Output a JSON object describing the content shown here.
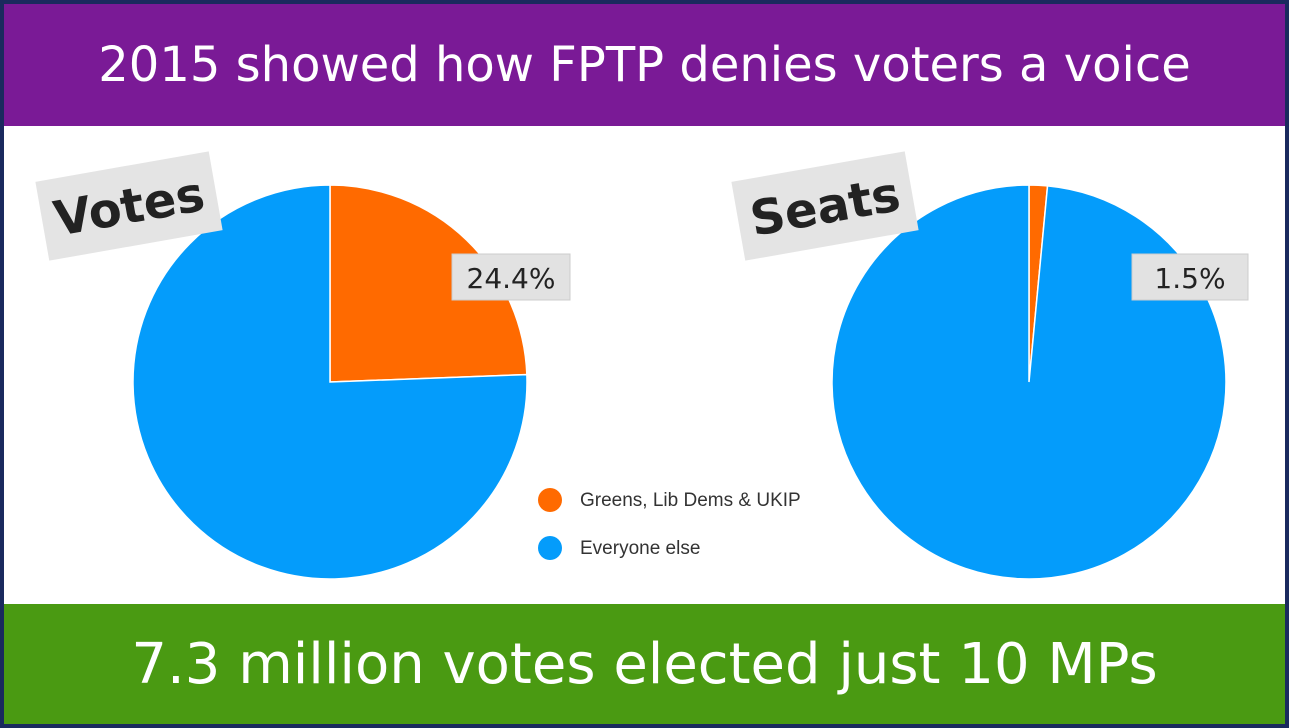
{
  "header": {
    "title": "2015 showed how FPTP denies voters a voice"
  },
  "footer": {
    "caption": "7.3 million votes elected just 10 MPs"
  },
  "colors": {
    "orange": "#ff6a00",
    "blue": "#049cfb",
    "top_banner": "#7a1a96",
    "bottom_banner": "#4a9a12"
  },
  "chart_data": [
    {
      "type": "pie",
      "title": "Votes",
      "slices": [
        {
          "label": "Greens, Lib Dems & UKIP",
          "value": 24.4,
          "data_label": "24.4%",
          "color": "#ff6a00"
        },
        {
          "label": "Everyone else",
          "value": 75.6,
          "color": "#049cfb"
        }
      ]
    },
    {
      "type": "pie",
      "title": "Seats",
      "slices": [
        {
          "label": "Greens, Lib Dems & UKIP",
          "value": 1.5,
          "data_label": "1.5%",
          "color": "#ff6a00"
        },
        {
          "label": "Everyone else",
          "value": 98.5,
          "color": "#049cfb"
        }
      ]
    }
  ],
  "legend": {
    "items": [
      {
        "label": "Greens, Lib Dems & UKIP",
        "color": "#ff6a00"
      },
      {
        "label": "Everyone else",
        "color": "#049cfb"
      }
    ]
  }
}
